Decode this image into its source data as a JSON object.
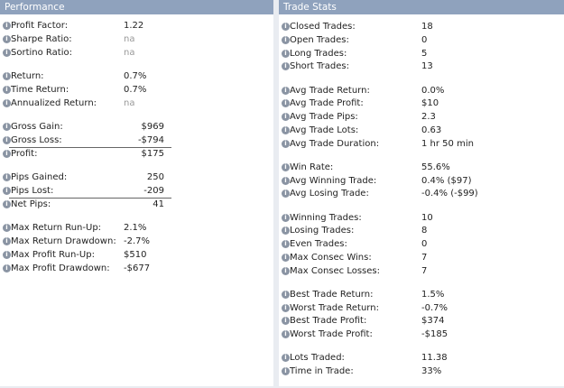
{
  "panels": [
    {
      "title": "Performance",
      "groups": [
        [
          {
            "label": "Profit Factor:",
            "value": "1.22"
          },
          {
            "label": "Sharpe Ratio:",
            "value": "na"
          },
          {
            "label": "Sortino Ratio:",
            "value": "na"
          }
        ],
        [
          {
            "label": "Return:",
            "value": "0.7%"
          },
          {
            "label": "Time Return:",
            "value": "0.7%"
          },
          {
            "label": "Annualized Return:",
            "value": "na"
          }
        ],
        [
          {
            "label": "Gross Gain:",
            "value": "$969"
          },
          {
            "label": "Gross Loss:",
            "value": "-$794"
          },
          {
            "label": "Profit:",
            "value": "$175"
          }
        ],
        [
          {
            "label": "Pips Gained:",
            "value": "250"
          },
          {
            "label": "Pips Lost:",
            "value": "-209"
          },
          {
            "label": "Net Pips:",
            "value": "41"
          }
        ],
        [
          {
            "label": "Max Return Run-Up:",
            "value": "2.1%"
          },
          {
            "label": "Max Return Drawdown:",
            "value": "-2.7%"
          },
          {
            "label": "Max Profit Run-Up:",
            "value": "$510"
          },
          {
            "label": "Max Profit Drawdown:",
            "value": "-$677"
          }
        ]
      ]
    },
    {
      "title": "Trade Stats",
      "groups": [
        [
          {
            "label": "Closed Trades:",
            "value": "18"
          },
          {
            "label": "Open Trades:",
            "value": "0"
          },
          {
            "label": "Long Trades:",
            "value": "5"
          },
          {
            "label": "Short Trades:",
            "value": "13"
          }
        ],
        [
          {
            "label": "Avg Trade Return:",
            "value": "0.0%"
          },
          {
            "label": "Avg Trade Profit:",
            "value": "$10"
          },
          {
            "label": "Avg Trade Pips:",
            "value": "2.3"
          },
          {
            "label": "Avg Trade Lots:",
            "value": "0.63"
          },
          {
            "label": "Avg Trade Duration:",
            "value": "1 hr 50 min"
          }
        ],
        [
          {
            "label": "Win Rate:",
            "value": "55.6%"
          },
          {
            "label": "Avg Winning Trade:",
            "value": "0.4% ($97)"
          },
          {
            "label": "Avg Losing Trade:",
            "value": "-0.4% (-$99)"
          }
        ],
        [
          {
            "label": "Winning Trades:",
            "value": "10"
          },
          {
            "label": "Losing Trades:",
            "value": "8"
          },
          {
            "label": "Even Trades:",
            "value": "0"
          },
          {
            "label": "Max Consec Wins:",
            "value": "7"
          },
          {
            "label": "Max Consec Losses:",
            "value": "7"
          }
        ],
        [
          {
            "label": "Best Trade Return:",
            "value": "1.5%"
          },
          {
            "label": "Worst Trade Return:",
            "value": "-0.7%"
          },
          {
            "label": "Best Trade Profit:",
            "value": "$374"
          },
          {
            "label": "Worst Trade Profit:",
            "value": "-$185"
          }
        ],
        [
          {
            "label": "Lots Traded:",
            "value": "11.38"
          },
          {
            "label": "Time in Trade:",
            "value": "33%"
          }
        ]
      ]
    }
  ]
}
